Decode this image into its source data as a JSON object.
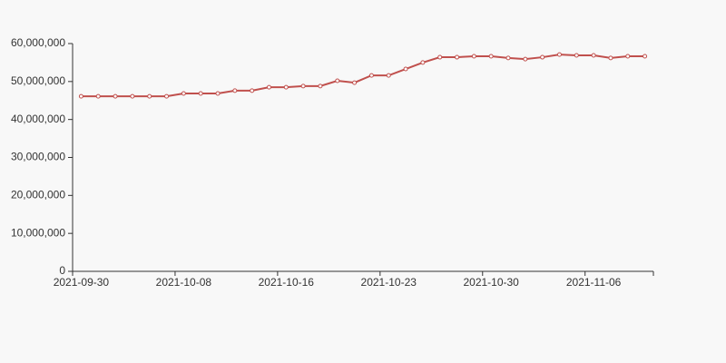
{
  "chart_data": {
    "type": "line",
    "categories": [
      "2021-09-30",
      null,
      null,
      null,
      null,
      null,
      "2021-10-08",
      null,
      null,
      null,
      null,
      null,
      "2021-10-16",
      null,
      null,
      null,
      null,
      null,
      "2021-10-23",
      null,
      null,
      null,
      null,
      null,
      "2021-10-30",
      null,
      null,
      null,
      null,
      null,
      "2021-11-06",
      null,
      null,
      null
    ],
    "series": [
      {
        "color": "#c0504d",
        "values": [
          46100000,
          46100000,
          46100000,
          46100000,
          46100000,
          46100000,
          46850000,
          46850000,
          46850000,
          47600000,
          47600000,
          48500000,
          48500000,
          48800000,
          48800000,
          50200000,
          49700000,
          51600000,
          51600000,
          53300000,
          55000000,
          56400000,
          56400000,
          56650000,
          56650000,
          56200000,
          55900000,
          56400000,
          57100000,
          56900000,
          56900000,
          56200000,
          56650000,
          56650000
        ]
      }
    ],
    "ylim": [
      0,
      60000000
    ],
    "yticks": [
      0,
      {
        "value": 10000000,
        "label": "10,000,000"
      },
      {
        "value": 20000000,
        "label": "20,000,000"
      },
      {
        "value": 30000000,
        "label": "30,000,000"
      },
      {
        "value": 40000000,
        "label": "40,000,000"
      },
      {
        "value": 50000000,
        "label": "50,000,000"
      },
      {
        "value": 60000000,
        "label": "60,000,000"
      }
    ]
  }
}
